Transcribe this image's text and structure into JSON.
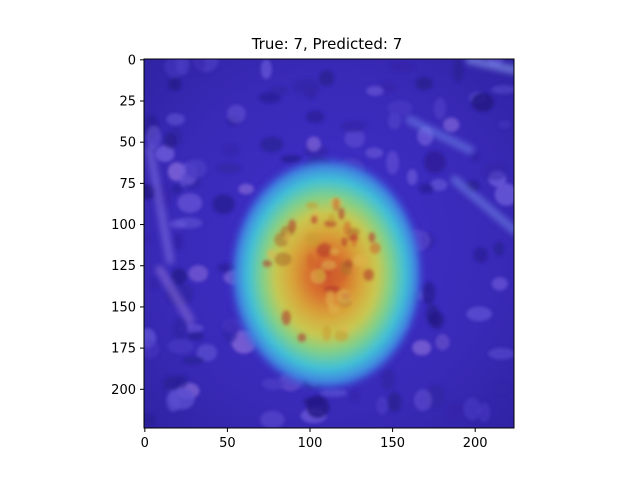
{
  "chart_data": {
    "type": "heatmap",
    "title": "True: 7, Predicted: 7",
    "xlabel": "",
    "ylabel": "",
    "xlim": [
      -0.5,
      223.5
    ],
    "ylim": [
      223.5,
      -0.5
    ],
    "y_inverted": true,
    "xticks": [
      0,
      50,
      100,
      150,
      200
    ],
    "yticks": [
      0,
      25,
      50,
      75,
      100,
      125,
      150,
      175,
      200
    ],
    "grid": false,
    "legend": "none",
    "colormap": "jet",
    "overlay": "attention heatmap over stained tissue image",
    "hotspot_center": [
      110,
      130
    ],
    "hotspot_extent": {
      "x": [
        65,
        160
      ],
      "y": [
        70,
        195
      ]
    }
  }
}
